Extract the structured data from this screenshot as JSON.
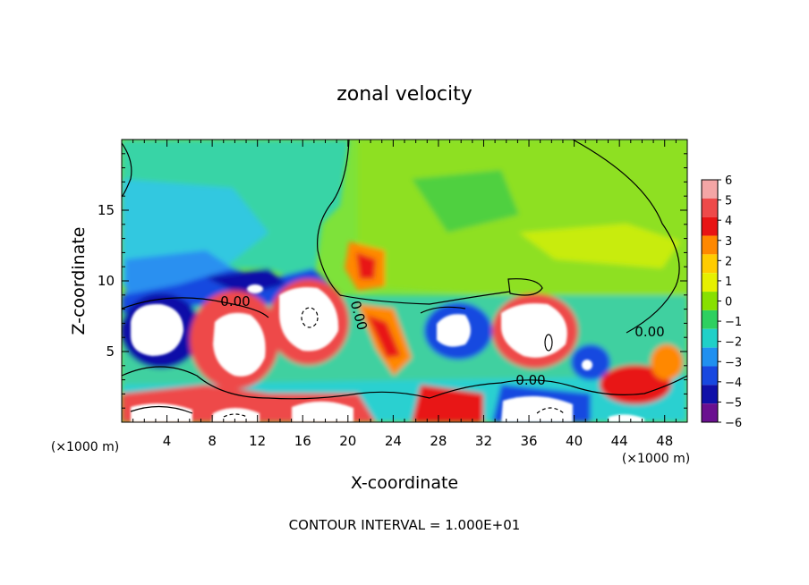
{
  "chart_data": {
    "type": "heatmap",
    "title": "zonal velocity",
    "xlabel": "X-coordinate",
    "ylabel": "Z-coordinate",
    "x_unit": "(×1000 m)",
    "x_unit_right": "(×1000 m)",
    "xlim": [
      0,
      50
    ],
    "ylim": [
      0,
      20
    ],
    "x_ticks": [
      "4",
      "8",
      "12",
      "16",
      "20",
      "24",
      "28",
      "32",
      "36",
      "40",
      "44",
      "48"
    ],
    "y_ticks": [
      "5",
      "10",
      "15"
    ],
    "footer": "CONTOUR INTERVAL = 1.000E+01",
    "colorbar": {
      "labels": [
        "6",
        "5",
        "4",
        "3",
        "2",
        "1",
        "0",
        "−1",
        "−2",
        "−3",
        "−4",
        "−5",
        "−6"
      ],
      "colors": [
        "#f4a6a6",
        "#ee4a4a",
        "#e81414",
        "#ff8800",
        "#ffcc00",
        "#e6f000",
        "#88e000",
        "#2ed060",
        "#20d0c8",
        "#2090f0",
        "#1848e0",
        "#1010a8",
        "#6a1090"
      ]
    },
    "contour_labels": [
      "0.00",
      "0.00",
      "0.00",
      "0.00"
    ],
    "background_color": "#7ee23a",
    "saturated_color": "#ffffff"
  }
}
